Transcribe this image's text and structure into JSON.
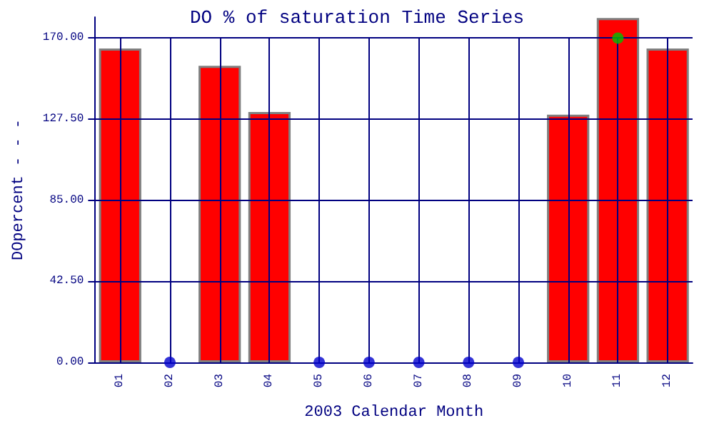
{
  "chart_data": {
    "type": "bar",
    "title": "DO % of saturation Time Series",
    "xlabel": "2003 Calendar Month",
    "ylabel": "DOpercent - - -",
    "categories": [
      "01",
      "02",
      "03",
      "04",
      "05",
      "06",
      "07",
      "08",
      "09",
      "10",
      "11",
      "12"
    ],
    "series": [
      {
        "color": "#ff0000",
        "values": [
          164.5,
          null,
          155.5,
          131.3,
          null,
          null,
          null,
          null,
          null,
          129.9,
          180.5,
          164.5
        ]
      },
      {
        "type": "scatter",
        "color": "#0000cc",
        "x": [
          "02",
          "05",
          "06",
          "07",
          "08",
          "09"
        ],
        "values": [
          0,
          0,
          0,
          0,
          0,
          0
        ]
      },
      {
        "type": "scatter",
        "color": "#00c000",
        "x": [
          "11"
        ],
        "values": [
          170
        ]
      }
    ],
    "ylim": [
      0,
      181
    ],
    "yticks": [
      {
        "value": 0,
        "label": "0.00"
      },
      {
        "value": 42.5,
        "label": "42.50"
      },
      {
        "value": 85,
        "label": "85.00"
      },
      {
        "value": 127.5,
        "label": "127.50"
      },
      {
        "value": 170,
        "label": "170.00"
      }
    ],
    "grid": true,
    "marker": "circle"
  }
}
